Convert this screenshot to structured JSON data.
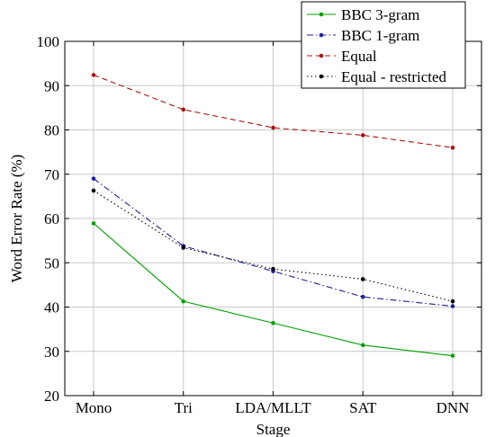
{
  "chart_data": {
    "type": "line",
    "title": "",
    "xlabel": "Stage",
    "ylabel": "Word Error Rate (%)",
    "categories": [
      "Mono",
      "Tri",
      "LDA/MLLT",
      "SAT",
      "DNN"
    ],
    "ylim": [
      20,
      100
    ],
    "yticks": [
      20,
      30,
      40,
      50,
      60,
      70,
      80,
      90,
      100
    ],
    "grid": true,
    "legend_position": "top-right",
    "series": [
      {
        "name": "BBC 3-gram",
        "color": "#00a000",
        "dash": "solid",
        "values": [
          58.9,
          41.3,
          36.4,
          31.4,
          29.0
        ]
      },
      {
        "name": "BBC 1-gram",
        "color": "#1f1f9a",
        "dash": "dashdot",
        "values": [
          69.0,
          53.8,
          48.1,
          42.3,
          40.2
        ]
      },
      {
        "name": "Equal",
        "color": "#aa1111",
        "dash": "dashed",
        "values": [
          92.4,
          84.6,
          80.5,
          78.8,
          76.0
        ]
      },
      {
        "name": "Equal - restricted",
        "color": "#000000",
        "dash": "dotted",
        "values": [
          66.3,
          53.4,
          48.6,
          46.3,
          41.3
        ]
      }
    ]
  }
}
